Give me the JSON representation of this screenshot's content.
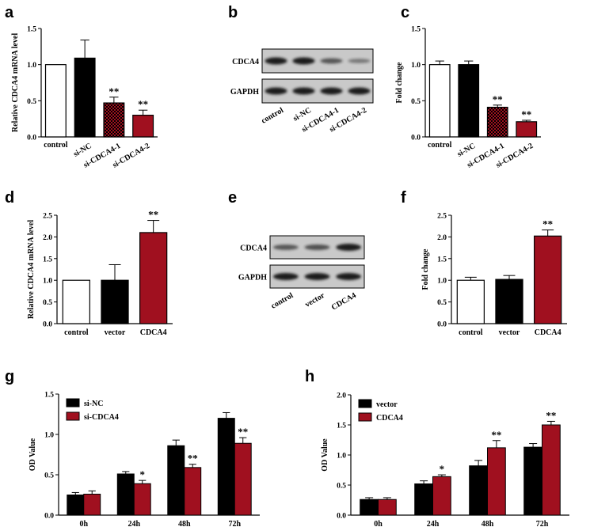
{
  "colors": {
    "control": "#ffffff",
    "si_nc": "#000000",
    "si_cdca4": "#a0101f",
    "vector": "#000000",
    "cdca4": "#a0101f",
    "blot_bg": "#c9c9c9",
    "band": "#1a1a1a"
  },
  "chart_data": [
    {
      "id": "a",
      "type": "bar",
      "panel_label": "a",
      "ylabel": "Relative CDCA4 mRNA level",
      "ylim": [
        0,
        1.5
      ],
      "yticks": [
        "0.0",
        "0.5",
        "1.0",
        "1.5"
      ],
      "categories": [
        "control",
        "si-NC",
        "si-CDCA4-1",
        "si-CDCA4-2"
      ],
      "label_rotation": "rotated",
      "values": [
        1.0,
        1.09,
        0.47,
        0.3
      ],
      "errors": [
        0,
        0.25,
        0.08,
        0.07
      ],
      "significance": [
        "",
        "",
        "**",
        "**"
      ],
      "fills": [
        "#ffffff",
        "#000000",
        "pattern",
        "#a0101f"
      ]
    },
    {
      "id": "c",
      "type": "bar",
      "panel_label": "c",
      "ylabel": "Fold change",
      "ylim": [
        0,
        1.5
      ],
      "yticks": [
        "0.0",
        "0.5",
        "1.0",
        "1.5"
      ],
      "categories": [
        "control",
        "si-NC",
        "si-CDCA4-1",
        "si-CDCA4-2"
      ],
      "label_rotation": "rotated",
      "values": [
        1.0,
        1.0,
        0.41,
        0.21
      ],
      "errors": [
        0.05,
        0.05,
        0.03,
        0.02
      ],
      "significance": [
        "",
        "",
        "**",
        "**"
      ],
      "fills": [
        "#ffffff",
        "#000000",
        "pattern",
        "#a0101f"
      ]
    },
    {
      "id": "d",
      "type": "bar",
      "panel_label": "d",
      "ylabel": "Relative CDCA4 mRNA level",
      "ylim": [
        0,
        2.5
      ],
      "yticks": [
        "0.0",
        "0.5",
        "1.0",
        "1.5",
        "2.0",
        "2.5"
      ],
      "categories": [
        "control",
        "vector",
        "CDCA4"
      ],
      "label_rotation": "horizontal",
      "values": [
        1.0,
        1.0,
        2.1
      ],
      "errors": [
        0,
        0.36,
        0.28
      ],
      "significance": [
        "",
        "",
        "**"
      ],
      "fills": [
        "#ffffff",
        "#000000",
        "#a0101f"
      ]
    },
    {
      "id": "f",
      "type": "bar",
      "panel_label": "f",
      "ylabel": "Fold change",
      "ylim": [
        0,
        2.5
      ],
      "yticks": [
        "0.0",
        "0.5",
        "1.0",
        "1.5",
        "2.0",
        "2.5"
      ],
      "categories": [
        "control",
        "vector",
        "CDCA4"
      ],
      "label_rotation": "horizontal",
      "values": [
        1.0,
        1.02,
        2.02
      ],
      "errors": [
        0.07,
        0.09,
        0.14
      ],
      "significance": [
        "",
        "",
        "**"
      ],
      "fills": [
        "#ffffff",
        "#000000",
        "#a0101f"
      ]
    },
    {
      "id": "g",
      "type": "grouped-bar",
      "panel_label": "g",
      "ylabel": "OD Value",
      "ylim": [
        0,
        1.5
      ],
      "yticks": [
        "0.0",
        "0.5",
        "1.0",
        "1.5"
      ],
      "categories": [
        "0h",
        "24h",
        "48h",
        "72h"
      ],
      "legend_position": "top-left",
      "series": [
        {
          "name": "si-NC",
          "color": "#000000",
          "values": [
            0.25,
            0.51,
            0.86,
            1.2
          ],
          "errors": [
            0.03,
            0.03,
            0.07,
            0.07
          ]
        },
        {
          "name": "si-CDCA4",
          "color": "#a0101f",
          "values": [
            0.26,
            0.39,
            0.59,
            0.89
          ],
          "errors": [
            0.04,
            0.04,
            0.04,
            0.07
          ]
        }
      ],
      "significance": [
        "",
        "*",
        "**",
        "**"
      ]
    },
    {
      "id": "h",
      "type": "grouped-bar",
      "panel_label": "h",
      "ylabel": "OD Value",
      "ylim": [
        0,
        2.0
      ],
      "yticks": [
        "0.0",
        "0.5",
        "1.0",
        "1.5",
        "2.0"
      ],
      "categories": [
        "0h",
        "24h",
        "48h",
        "72h"
      ],
      "legend_position": "top-left",
      "series": [
        {
          "name": "vector",
          "color": "#000000",
          "values": [
            0.26,
            0.52,
            0.82,
            1.13
          ],
          "errors": [
            0.03,
            0.05,
            0.09,
            0.06
          ]
        },
        {
          "name": "CDCA4",
          "color": "#a0101f",
          "values": [
            0.26,
            0.64,
            1.12,
            1.5
          ],
          "errors": [
            0.03,
            0.03,
            0.12,
            0.06
          ]
        }
      ],
      "significance": [
        "",
        "*",
        "**",
        "**"
      ]
    }
  ],
  "blots": [
    {
      "id": "b",
      "panel_label": "b",
      "rows": [
        "CDCA4",
        "GAPDH"
      ],
      "lanes": [
        "control",
        "si-NC",
        "si-CDCA4-1",
        "si-CDCA4-2"
      ],
      "band_intensity": [
        [
          1.0,
          1.0,
          0.55,
          0.3
        ],
        [
          1.0,
          1.0,
          1.0,
          1.0
        ]
      ]
    },
    {
      "id": "e",
      "panel_label": "e",
      "rows": [
        "CDCA4",
        "GAPDH"
      ],
      "lanes": [
        "control",
        "vector",
        "CDCA4"
      ],
      "band_intensity": [
        [
          0.55,
          0.6,
          1.0
        ],
        [
          1.0,
          1.0,
          1.0
        ]
      ]
    }
  ]
}
